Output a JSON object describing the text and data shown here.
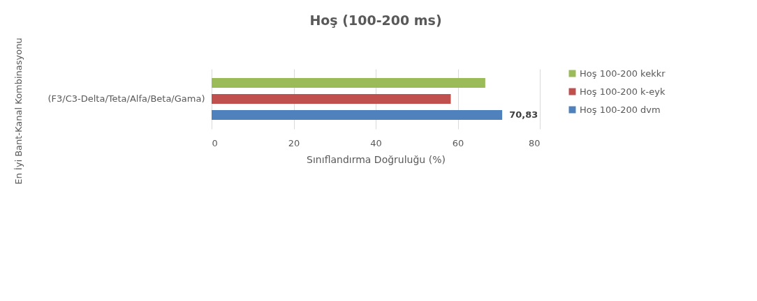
{
  "chart_data": {
    "type": "bar",
    "orientation": "horizontal",
    "title": "Hoş (100-200 ms)",
    "xlabel": "Sınıflandırma Doğruluğu (%)",
    "ylabel": "En İyi Bant-Kanal Kombinasyonu",
    "categories": [
      "(F3/C3-Delta/Teta/Alfa/Beta/Gama)"
    ],
    "series": [
      {
        "name": "Hoş 100-200 kekkr",
        "color": "#9bbb59",
        "values": [
          66.7
        ]
      },
      {
        "name": "Hoş 100-200 k-eyk",
        "color": "#c0504d",
        "values": [
          58.3
        ]
      },
      {
        "name": "Hoş 100-200 dvm",
        "color": "#4f81bd",
        "values": [
          70.83
        ],
        "value_labels": [
          "70,83"
        ]
      }
    ],
    "xlim": [
      0,
      80
    ],
    "xticks": [
      0,
      20,
      40,
      60,
      80
    ],
    "grid": "x",
    "legend": "right"
  }
}
